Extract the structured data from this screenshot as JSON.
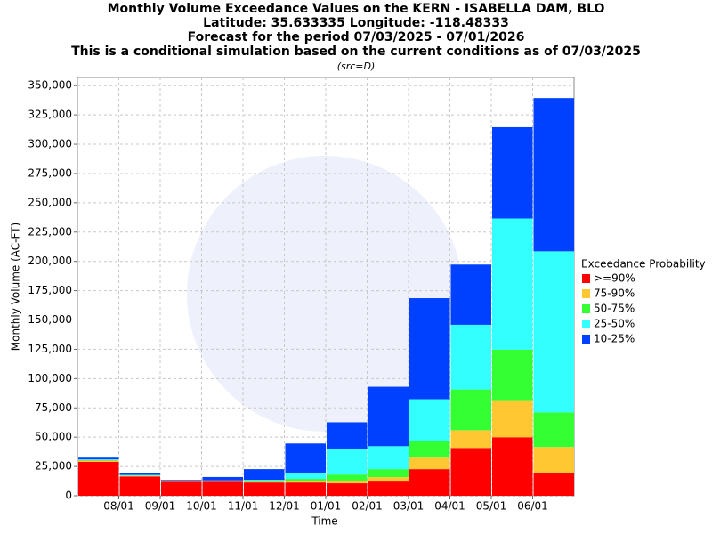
{
  "chart_data": {
    "type": "stacked-bar",
    "title_lines": [
      "Monthly Volume Exceedance Values on the KERN - ISABELLA DAM, BLO",
      "Latitude: 35.633335 Longitude: -118.48333",
      "Forecast for the period 07/03/2025 - 07/01/2026",
      "This is a conditional simulation based on the current conditions as of 07/03/2025"
    ],
    "subtitle": "(src=D)",
    "x_label": "Time",
    "y_label": "Monthly Volume (AC-FT)",
    "xticks": [
      "08/01",
      "09/01",
      "10/01",
      "11/01",
      "12/01",
      "01/01",
      "02/01",
      "03/01",
      "04/01",
      "05/01",
      "06/01"
    ],
    "ylim": [
      0,
      357000
    ],
    "yticks": [
      0,
      {
        "value": 25000,
        "label": "25,000"
      },
      {
        "value": 50000,
        "label": "50,000"
      },
      {
        "value": 75000,
        "label": "75,000"
      },
      {
        "value": 100000,
        "label": "100,000"
      },
      {
        "value": 125000,
        "label": "125,000"
      },
      {
        "value": 150000,
        "label": "150,000"
      },
      {
        "value": 175000,
        "label": "175,000"
      },
      {
        "value": 200000,
        "label": "200,000"
      },
      {
        "value": 225000,
        "label": "225,000"
      },
      {
        "value": 250000,
        "label": "250,000"
      },
      {
        "value": 275000,
        "label": "275,000"
      },
      {
        "value": 300000,
        "label": "300,000"
      },
      {
        "value": 325000,
        "label": "325,000"
      },
      {
        "value": 350000,
        "label": "350,000"
      }
    ],
    "grid": true,
    "legend_title": "Exceedance Probability",
    "legend_position": "right",
    "series": [
      {
        "name": ">=90%",
        "color": "#ff0000",
        "values": [
          29000,
          16500,
          12000,
          12000,
          11300,
          11300,
          10600,
          12100,
          22700,
          40800,
          49900,
          19700
        ]
      },
      {
        "name": "75-90%",
        "color": "#ffc832",
        "values": [
          1000,
          500,
          500,
          300,
          500,
          1600,
          2300,
          3800,
          9800,
          15100,
          31700,
          21900
        ]
      },
      {
        "name": "50-75%",
        "color": "#33ff33",
        "values": [
          500,
          300,
          300,
          300,
          500,
          1500,
          5200,
          6800,
          14400,
          34800,
          43100,
          29500
        ]
      },
      {
        "name": "25-50%",
        "color": "#33ffff",
        "values": [
          500,
          500,
          300,
          500,
          1300,
          5300,
          22000,
          19600,
          35500,
          55200,
          111900,
          137500
        ]
      },
      {
        "name": "10-25%",
        "color": "#0040ff",
        "values": [
          1500,
          1200,
          500,
          2900,
          9100,
          24900,
          22600,
          50700,
          86200,
          51400,
          77900,
          130800
        ]
      }
    ]
  }
}
